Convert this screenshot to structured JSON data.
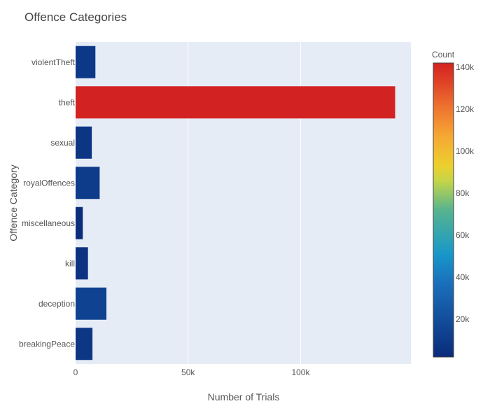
{
  "chart_data": {
    "type": "bar",
    "orientation": "horizontal",
    "title": "Offence Categories",
    "xlabel": "Number of Trials",
    "ylabel": "Offence Category",
    "categories": [
      "violentTheft",
      "theft",
      "sexual",
      "royalOffences",
      "miscellaneous",
      "kill",
      "deception",
      "breakingPeace"
    ],
    "values": [
      8800,
      142000,
      7200,
      10700,
      3200,
      5500,
      13700,
      7500
    ],
    "xlim": [
      0,
      149000
    ],
    "x_ticks": [
      0,
      50000,
      100000
    ],
    "x_tick_labels": [
      "0",
      "50k",
      "100k"
    ],
    "grid": true,
    "colorbar": {
      "title": "Count",
      "range": [
        2000,
        142000
      ],
      "ticks": [
        20000,
        40000,
        60000,
        80000,
        100000,
        120000,
        140000
      ],
      "tick_labels": [
        "20k",
        "40k",
        "60k",
        "80k",
        "100k",
        "120k",
        "140k"
      ],
      "colorscale": [
        [
          0.0,
          "#0a2b7a"
        ],
        [
          0.25,
          "#1a6fbb"
        ],
        [
          0.35,
          "#1897c9"
        ],
        [
          0.5,
          "#57b48e"
        ],
        [
          0.6,
          "#c5d548"
        ],
        [
          0.65,
          "#ecd02e"
        ],
        [
          0.75,
          "#f5a833"
        ],
        [
          0.85,
          "#ee7330"
        ],
        [
          0.95,
          "#dc3a24"
        ],
        [
          1.0,
          "#d32222"
        ]
      ]
    },
    "plot_background": "#e5ecf6",
    "gridline_color": "#ffffff",
    "text_color": "#555555"
  }
}
